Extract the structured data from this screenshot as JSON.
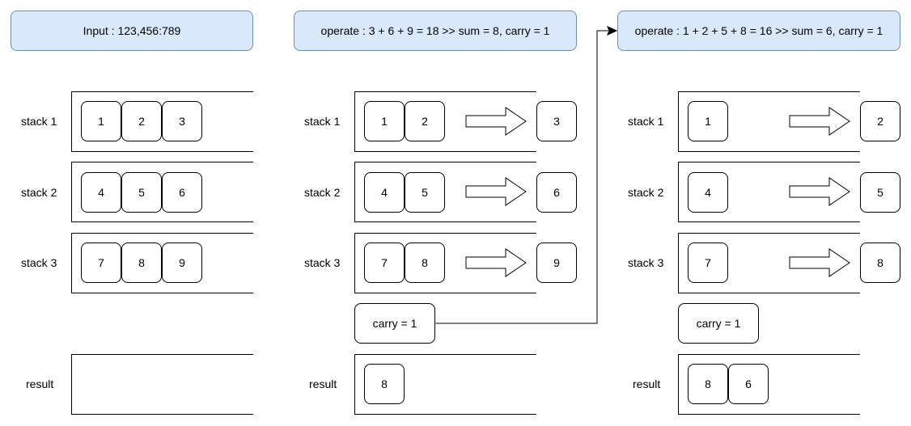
{
  "headers": {
    "input": "Input : 123,456:789",
    "op1": "operate : 3 + 6 + 9 = 18 >> sum = 8, carry = 1",
    "op2": "operate : 1 + 2 + 5 + 8 = 16 >> sum = 6, carry = 1"
  },
  "labels": {
    "stack1": "stack 1",
    "stack2": "stack 2",
    "stack3": "stack 3",
    "result": "result"
  },
  "panel1": {
    "stack1": [
      "1",
      "2",
      "3"
    ],
    "stack2": [
      "4",
      "5",
      "6"
    ],
    "stack3": [
      "7",
      "8",
      "9"
    ],
    "result": []
  },
  "panel2": {
    "stack1": [
      "1",
      "2"
    ],
    "stack2": [
      "4",
      "5"
    ],
    "stack3": [
      "7",
      "8"
    ],
    "popped": [
      "3",
      "6",
      "9"
    ],
    "carry": "carry = 1",
    "result": [
      "8"
    ]
  },
  "panel3": {
    "stack1": [
      "1"
    ],
    "stack2": [
      "4"
    ],
    "stack3": [
      "7"
    ],
    "popped": [
      "2",
      "5",
      "8"
    ],
    "carry": "carry = 1",
    "result": [
      "8",
      "6"
    ]
  }
}
